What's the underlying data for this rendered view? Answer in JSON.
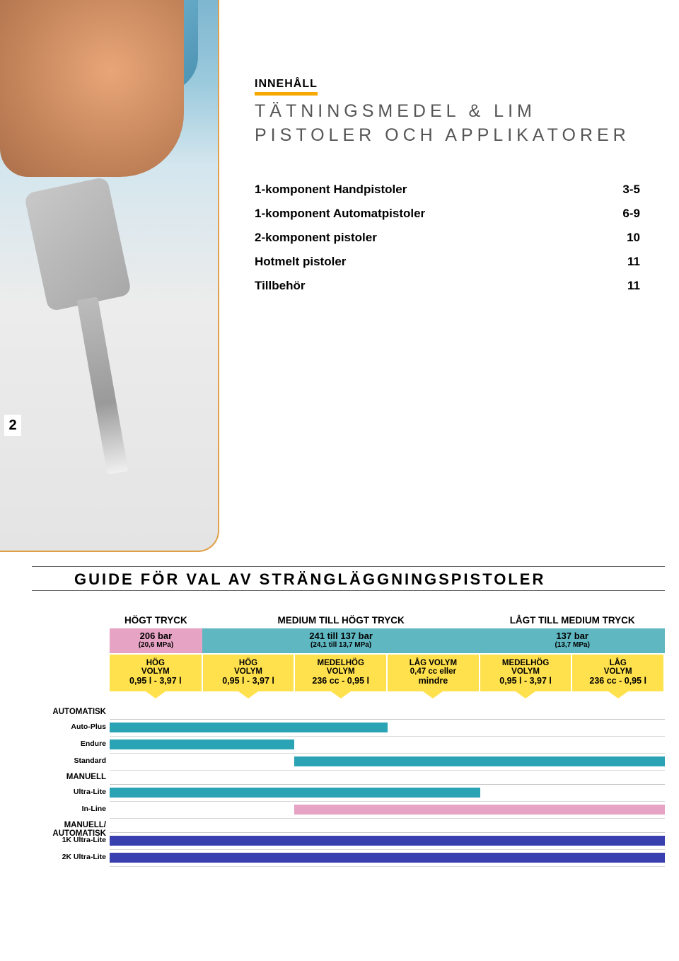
{
  "heading": {
    "eyebrow": "INNEHÅLL",
    "title": "TÄTNINGSMEDEL & LIM PISTOLER OCH APPLIKATORER"
  },
  "toc": [
    {
      "label": "1-komponent Handpistoler",
      "pages": "3-5"
    },
    {
      "label": "1-komponent Automatpistoler",
      "pages": "6-9"
    },
    {
      "label": "2-komponent pistoler",
      "pages": "10"
    },
    {
      "label": "Hotmelt pistoler",
      "pages": "11"
    },
    {
      "label": "Tillbehör",
      "pages": "11"
    }
  ],
  "pageNumber": "2",
  "guide": {
    "title": "GUIDE FÖR VAL AV STRÄNGLÄGGNINGSPISTOLER",
    "pressureCols": [
      {
        "heading": "HÖGT TRYCK",
        "bar": "206 bar",
        "mpa": "(20,6 MPa)",
        "color": "#e6a3c4",
        "widthPct": 16.67
      },
      {
        "heading": "MEDIUM TILL HÖGT TRYCK",
        "bar": "241 till 137 bar",
        "mpa": "(24,1 till 13,7 MPa)",
        "color": "#5fb7c1",
        "widthPct": 50.0
      },
      {
        "heading": "LÅGT TILL MEDIUM TRYCK",
        "bar": "137 bar",
        "mpa": "(13,7 MPa)",
        "color": "#5fb7c1",
        "widthPct": 33.33
      }
    ],
    "volumeCols": [
      {
        "l1": "HÖG",
        "l2": "VOLYM",
        "l3": "0,95 l - 3,97 l"
      },
      {
        "l1": "HÖG",
        "l2": "VOLYM",
        "l3": "0,95 l - 3,97 l"
      },
      {
        "l1": "MEDELHÖG",
        "l2": "VOLYM",
        "l3": "236 cc - 0,95 l"
      },
      {
        "l1": "LÅG VOLYM",
        "l2": "0,47 cc eller",
        "l3": "mindre"
      },
      {
        "l1": "MEDELHÖG",
        "l2": "VOLYM",
        "l3": "0,95 l - 3,97 l"
      },
      {
        "l1": "LÅG",
        "l2": "VOLYM",
        "l3": "236 cc - 0,95 l"
      }
    ],
    "rows": [
      {
        "type": "cat",
        "label": "AUTOMATISK"
      },
      {
        "type": "item",
        "label": "Auto-Plus",
        "startPct": 0,
        "endPct": 50,
        "color": "#2aa3b4"
      },
      {
        "type": "item",
        "label": "Endure",
        "startPct": 0,
        "endPct": 33.3,
        "color": "#2aa3b4"
      },
      {
        "type": "item",
        "label": "Standard",
        "startPct": 33.3,
        "endPct": 100,
        "color": "#2aa3b4"
      },
      {
        "type": "cat",
        "label": "MANUELL"
      },
      {
        "type": "item",
        "label": "Ultra-Lite",
        "startPct": 0,
        "endPct": 66.7,
        "color": "#2aa3b4"
      },
      {
        "type": "item",
        "label": "In-Line",
        "startPct": 33.3,
        "endPct": 100,
        "color": "#e6a3c4"
      },
      {
        "type": "cat",
        "label": "MANUELL/\nAUTOMATISK"
      },
      {
        "type": "item",
        "label": "1K Ultra-Lite",
        "startPct": 0,
        "endPct": 100,
        "color": "#3a3fb0"
      },
      {
        "type": "item",
        "label": "2K Ultra-Lite",
        "startPct": 0,
        "endPct": 100,
        "color": "#3a3fb0"
      }
    ]
  }
}
